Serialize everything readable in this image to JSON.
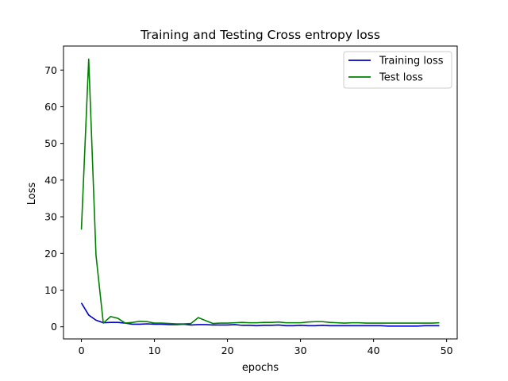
{
  "chart_data": {
    "type": "line",
    "title": "Training and Testing Cross entropy loss",
    "xlabel": "epochs",
    "ylabel": "Loss",
    "xlim": [
      -2.45,
      51.45
    ],
    "ylim": [
      -3.31,
      76.55
    ],
    "xticks": [
      0,
      10,
      20,
      30,
      40,
      50
    ],
    "yticks": [
      0,
      10,
      20,
      30,
      40,
      50,
      60,
      70
    ],
    "grid": false,
    "legend_position": "top-right",
    "x": [
      0,
      1,
      2,
      3,
      4,
      5,
      6,
      7,
      8,
      9,
      10,
      11,
      12,
      13,
      14,
      15,
      16,
      17,
      18,
      19,
      20,
      21,
      22,
      23,
      24,
      25,
      26,
      27,
      28,
      29,
      30,
      31,
      32,
      33,
      34,
      35,
      36,
      37,
      38,
      39,
      40,
      41,
      42,
      43,
      44,
      45,
      46,
      47,
      48,
      49
    ],
    "series": [
      {
        "name": "Training loss",
        "color": "#0000cc",
        "values": [
          6.5,
          3.2,
          1.8,
          1.1,
          1.2,
          1.2,
          1.0,
          0.7,
          0.7,
          0.8,
          0.7,
          0.7,
          0.6,
          0.6,
          0.7,
          0.5,
          0.6,
          0.6,
          0.5,
          0.5,
          0.5,
          0.6,
          0.4,
          0.4,
          0.3,
          0.4,
          0.4,
          0.5,
          0.3,
          0.3,
          0.4,
          0.3,
          0.3,
          0.4,
          0.3,
          0.3,
          0.3,
          0.3,
          0.3,
          0.3,
          0.3,
          0.3,
          0.2,
          0.2,
          0.2,
          0.2,
          0.2,
          0.3,
          0.3,
          0.3
        ]
      },
      {
        "name": "Test loss",
        "color": "#008000",
        "values": [
          26.5,
          73.0,
          19.5,
          1.0,
          2.8,
          2.3,
          1.0,
          1.2,
          1.5,
          1.4,
          1.0,
          1.0,
          0.9,
          0.8,
          0.8,
          0.9,
          2.5,
          1.7,
          0.9,
          1.0,
          1.0,
          1.1,
          1.2,
          1.1,
          1.1,
          1.2,
          1.2,
          1.3,
          1.1,
          1.1,
          1.1,
          1.3,
          1.4,
          1.4,
          1.2,
          1.1,
          1.0,
          1.1,
          1.1,
          1.0,
          1.0,
          1.0,
          1.0,
          1.0,
          1.0,
          1.0,
          1.0,
          1.0,
          1.0,
          1.1
        ]
      }
    ]
  }
}
